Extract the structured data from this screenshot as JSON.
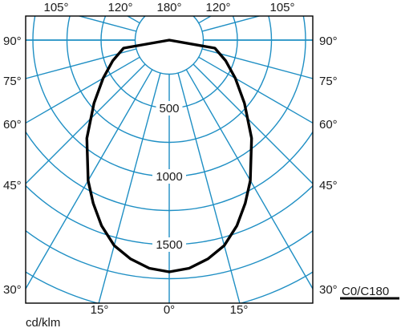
{
  "chart_data": {
    "type": "polar",
    "unit_label": "cd/klm",
    "legend": {
      "label": "C0/C180",
      "color": "#000000"
    },
    "colors": {
      "grid": "#1f8fc4",
      "curve": "#000000",
      "text": "#1a1a1a"
    },
    "radial_range": [
      0,
      1800
    ],
    "ring_labels": [
      "500",
      "1000",
      "1500"
    ],
    "angle_labels": {
      "top": [
        "105°",
        "120°",
        "180°",
        "120°",
        "105°"
      ],
      "left": [
        "90°",
        "75°",
        "60°",
        "45°",
        "30°"
      ],
      "right": [
        "90°",
        "75°",
        "60°",
        "45°",
        "30°"
      ],
      "bottom": [
        "15°",
        "0°",
        "15°"
      ]
    },
    "series": [
      {
        "name": "C0/C180",
        "gamma_deg": [
          0,
          5,
          10,
          15,
          20,
          25,
          30,
          40,
          50,
          60,
          70,
          80,
          90
        ],
        "intensity": [
          1700,
          1680,
          1630,
          1560,
          1450,
          1320,
          1190,
          940,
          720,
          560,
          440,
          340,
          0
        ]
      }
    ]
  }
}
